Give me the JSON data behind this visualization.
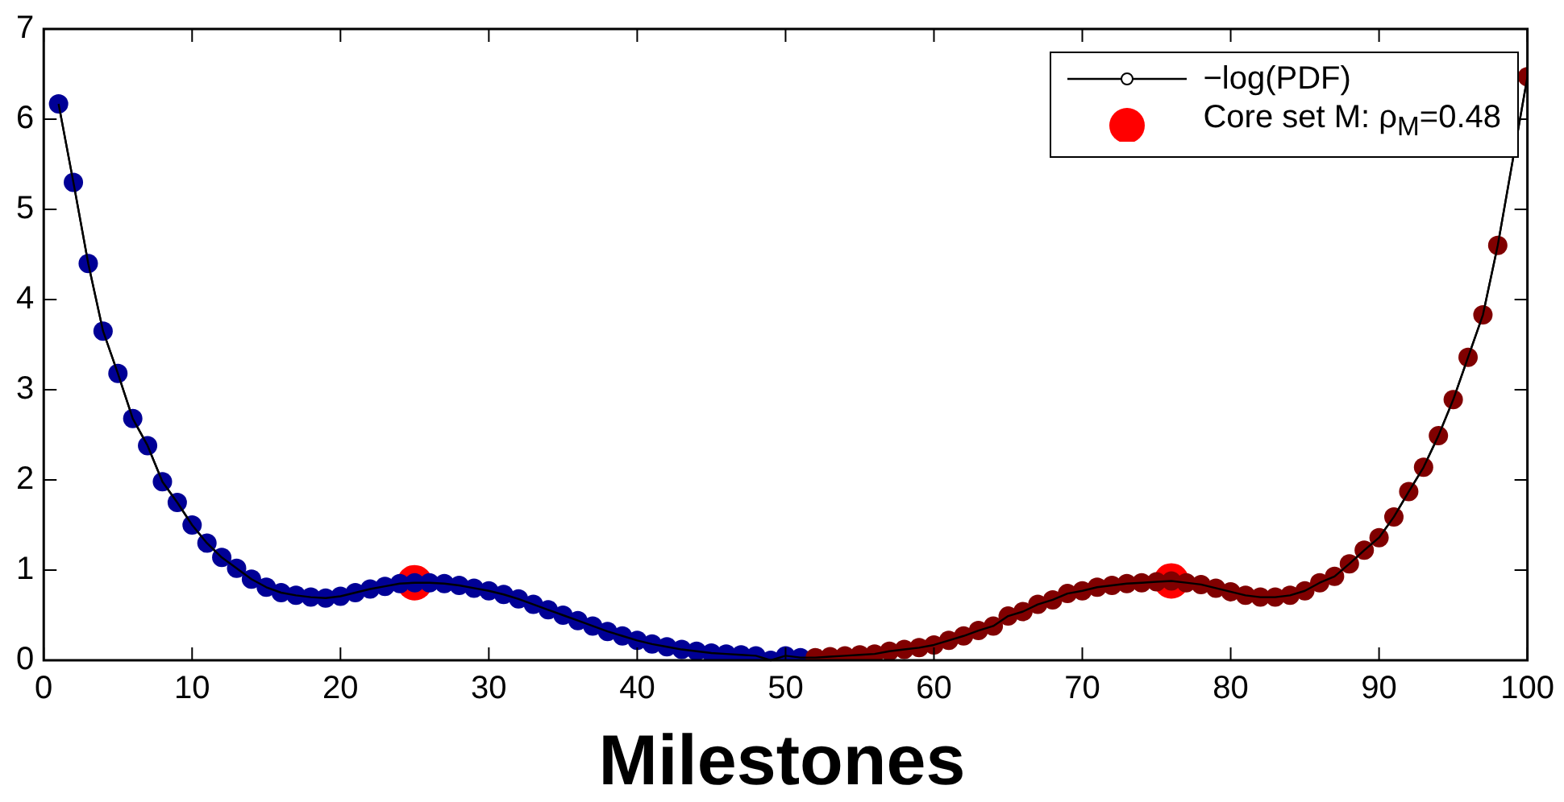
{
  "chart_data": {
    "type": "line",
    "xlabel": "Milestones",
    "xlim": [
      0,
      100
    ],
    "xticks": [
      0,
      10,
      20,
      30,
      40,
      50,
      60,
      70,
      80,
      90,
      100
    ],
    "ylim": [
      0,
      7
    ],
    "yticks": [
      0,
      1,
      2,
      3,
      4,
      5,
      6,
      7
    ],
    "grid": false,
    "legend": "top right",
    "x": [
      1,
      2,
      3,
      4,
      5,
      6,
      7,
      8,
      9,
      10,
      11,
      12,
      13,
      14,
      15,
      16,
      17,
      18,
      19,
      20,
      21,
      22,
      23,
      24,
      25,
      26,
      27,
      28,
      29,
      30,
      31,
      32,
      33,
      34,
      35,
      36,
      37,
      38,
      39,
      40,
      41,
      42,
      43,
      44,
      45,
      46,
      47,
      48,
      49,
      50,
      51,
      52,
      53,
      54,
      55,
      56,
      57,
      58,
      59,
      60,
      61,
      62,
      63,
      64,
      65,
      66,
      67,
      68,
      69,
      70,
      71,
      72,
      73,
      74,
      75,
      76,
      77,
      78,
      79,
      80,
      81,
      82,
      83,
      84,
      85,
      86,
      87,
      88,
      89,
      90,
      91,
      92,
      93,
      94,
      95,
      96,
      97,
      98,
      99,
      100
    ],
    "series": [
      {
        "name": "−log(PDF)",
        "color": "#000000",
        "marker": "circle",
        "line_style": "solid",
        "values": [
          6.17,
          5.3,
          4.4,
          3.65,
          3.18,
          2.68,
          2.38,
          1.98,
          1.75,
          1.5,
          1.3,
          1.14,
          1.02,
          0.9,
          0.81,
          0.75,
          0.72,
          0.7,
          0.69,
          0.71,
          0.75,
          0.79,
          0.82,
          0.85,
          0.86,
          0.86,
          0.85,
          0.83,
          0.8,
          0.77,
          0.73,
          0.68,
          0.62,
          0.56,
          0.5,
          0.44,
          0.38,
          0.32,
          0.27,
          0.22,
          0.18,
          0.15,
          0.12,
          0.1,
          0.08,
          0.07,
          0.06,
          0.05,
          0,
          0.05,
          0.03,
          0.03,
          0.04,
          0.05,
          0.06,
          0.07,
          0.1,
          0.12,
          0.14,
          0.17,
          0.22,
          0.27,
          0.33,
          0.38,
          0.49,
          0.54,
          0.62,
          0.67,
          0.74,
          0.77,
          0.81,
          0.83,
          0.85,
          0.86,
          0.87,
          0.88,
          0.86,
          0.84,
          0.8,
          0.76,
          0.72,
          0.7,
          0.7,
          0.72,
          0.77,
          0.86,
          0.93,
          1.07,
          1.22,
          1.36,
          1.59,
          1.87,
          2.14,
          2.49,
          2.89,
          3.36,
          3.83,
          4.6,
          null,
          6.47
        ],
        "colors": [
          "#000096",
          "#000096",
          "#000096",
          "#000096",
          "#000096",
          "#000096",
          "#000096",
          "#000096",
          "#000096",
          "#000096",
          "#000096",
          "#000096",
          "#000096",
          "#000096",
          "#000096",
          "#000096",
          "#000096",
          "#000096",
          "#000096",
          "#000096",
          "#000096",
          "#000096",
          "#000096",
          "#000096",
          "#000096",
          "#000096",
          "#000096",
          "#000096",
          "#000096",
          "#000096",
          "#000096",
          "#000096",
          "#000096",
          "#000096",
          "#000096",
          "#000096",
          "#000096",
          "#000096",
          "#000096",
          "#000096",
          "#000096",
          "#000096",
          "#000096",
          "#000096",
          "#000096",
          "#000096",
          "#000096",
          "#000096",
          "#000096",
          "#000096",
          "#000096",
          "#800000",
          "#800000",
          "#800000",
          "#800000",
          "#800000",
          "#800000",
          "#800000",
          "#800000",
          "#800000",
          "#800000",
          "#800000",
          "#800000",
          "#800000",
          "#800000",
          "#800000",
          "#800000",
          "#800000",
          "#800000",
          "#800000",
          "#800000",
          "#800000",
          "#800000",
          "#800000",
          "#800000",
          "#800000",
          "#800000",
          "#800000",
          "#800000",
          "#800000",
          "#800000",
          "#800000",
          "#800000",
          "#800000",
          "#800000",
          "#800000",
          "#800000",
          "#800000",
          "#800000",
          "#800000",
          "#800000",
          "#800000",
          "#800000",
          "#800000",
          "#800000",
          "#800000",
          "#800000",
          "#800000",
          "#800000",
          "#800000"
        ]
      },
      {
        "name": "Core set M: ρ$_{M}$=0.48",
        "type": "scatter",
        "color": "#ff0000",
        "marker": "circle",
        "x": [
          25,
          76
        ],
        "values": [
          0.86,
          0.88
        ]
      }
    ]
  }
}
